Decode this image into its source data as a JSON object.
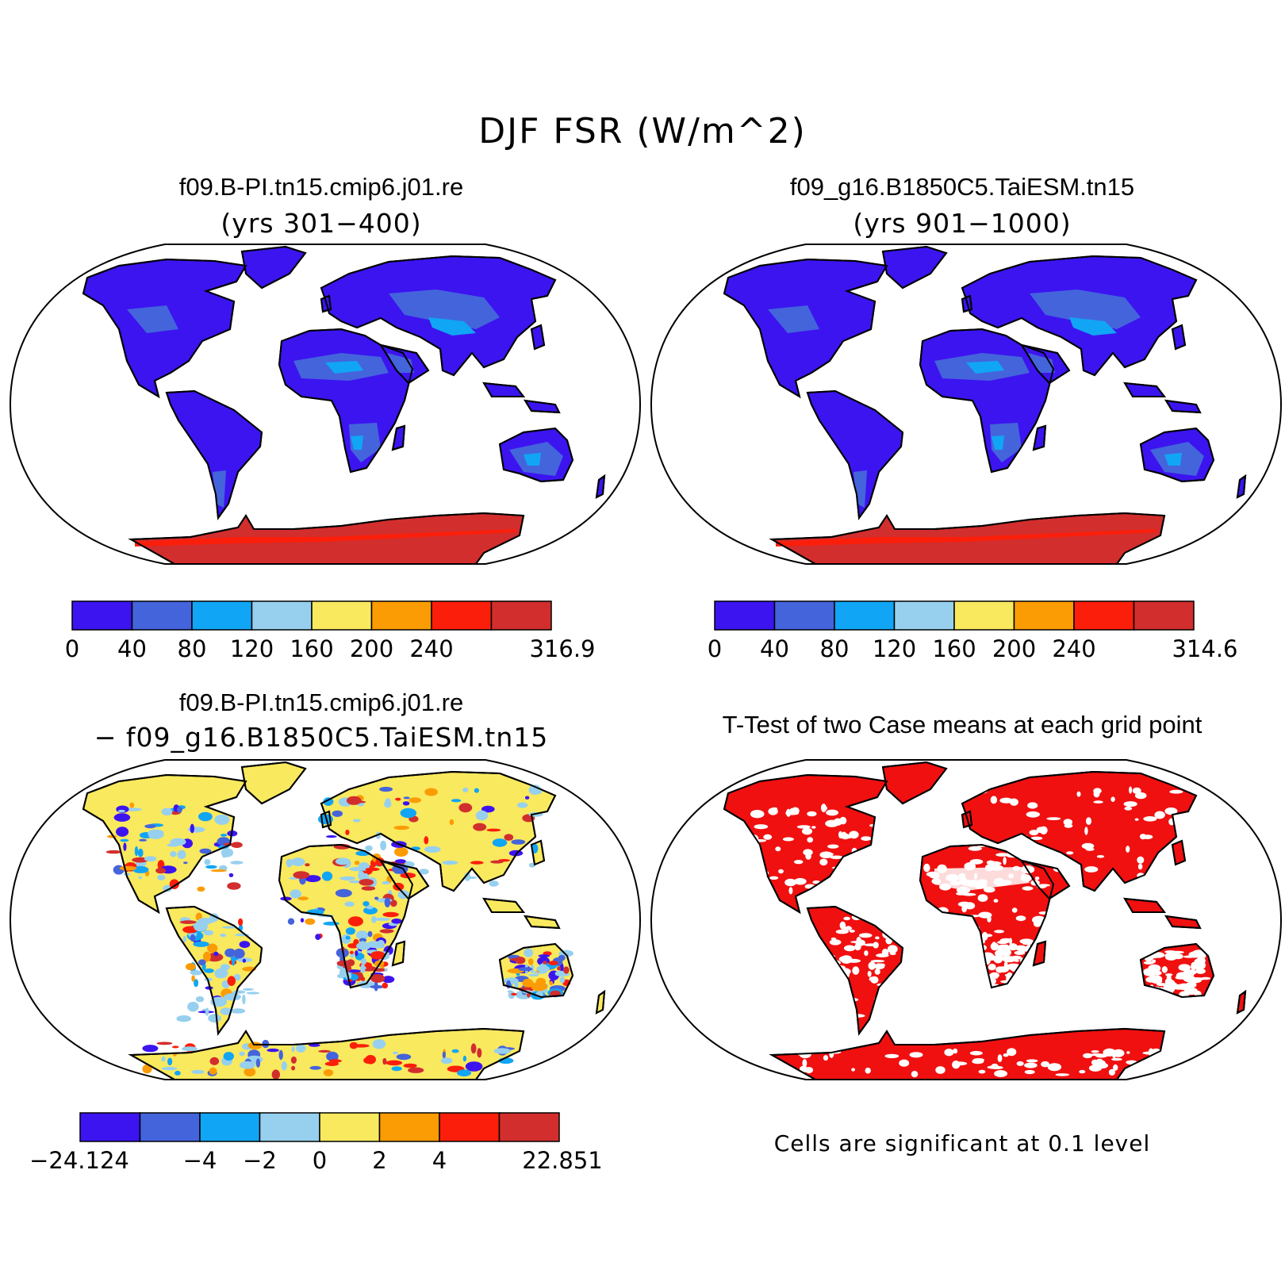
{
  "figure": {
    "title": "DJF FSR (W/m^2)"
  },
  "colors": {
    "levels": [
      "#3c14f0",
      "#4464dc",
      "#11a5f5",
      "#97d0ee",
      "#f9e95e",
      "#fb9c04",
      "#fb1e0a",
      "#d22e2d"
    ],
    "significant": "#f01010",
    "land_low": "#3c14f0",
    "land_mid": "#4464dc",
    "land_hi": "#11a5f5",
    "antarctica": "#d22e2d",
    "antarctica_edge": "#fb1e0a",
    "diff_yellow": "#f9e95e",
    "diff_light": "#97d0ee"
  },
  "panels": [
    {
      "id": "case1",
      "title": "f09.B-PI.tn15.cmip6.j01.re",
      "subtitle": "(yrs 301−400)",
      "colorbar_labels": [
        "0",
        "40",
        "80",
        "120",
        "160",
        "200",
        "240",
        "316.9"
      ]
    },
    {
      "id": "case2",
      "title": "f09_g16.B1850C5.TaiESM.tn15",
      "subtitle": "(yrs 901−1000)",
      "colorbar_labels": [
        "0",
        "40",
        "80",
        "120",
        "160",
        "200",
        "240",
        "314.6"
      ]
    },
    {
      "id": "difference",
      "title": "f09.B-PI.tn15.cmip6.j01.re",
      "subtitle": "− f09_g16.B1850C5.TaiESM.tn15",
      "colorbar_labels": [
        "−24.124",
        "−4",
        "−2",
        "0",
        "2",
        "4",
        "22.851"
      ]
    },
    {
      "id": "ttest",
      "title": "T-Test of two Case means at each grid point",
      "note": "Cells are significant at 0.1 level"
    }
  ]
}
